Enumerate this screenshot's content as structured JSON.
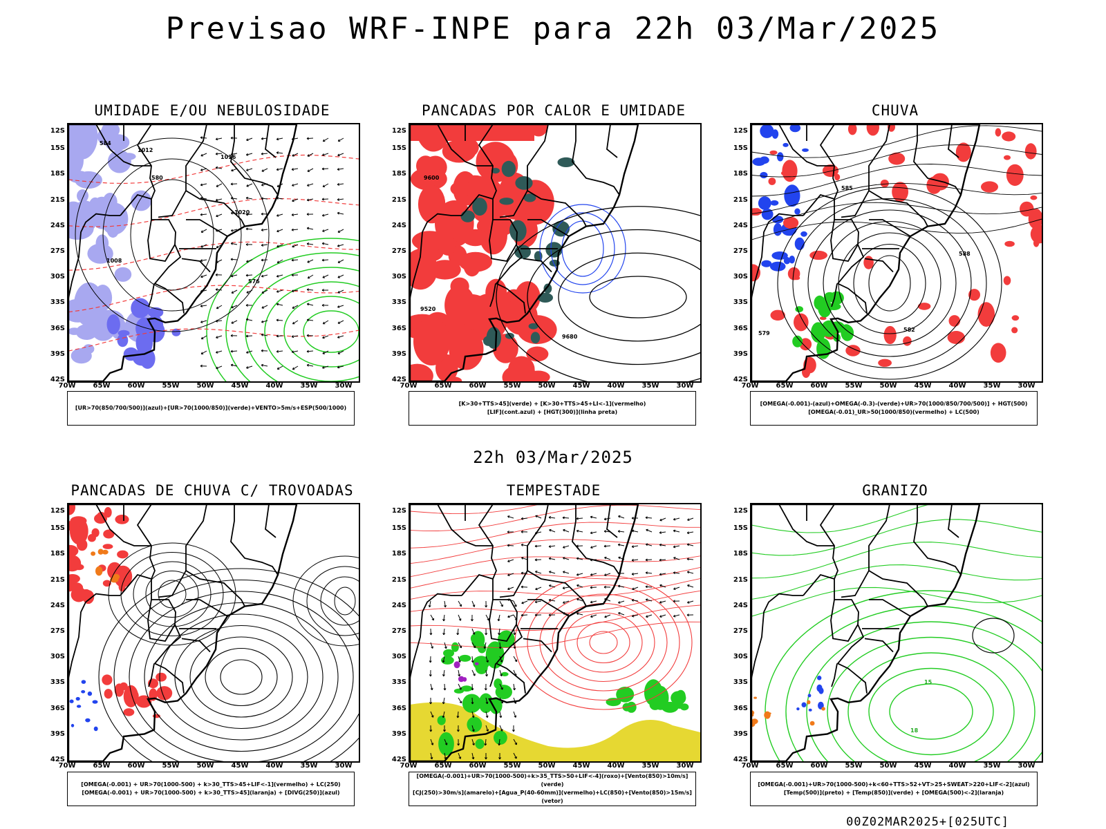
{
  "title": "Previsao WRF-INPE  para 22h 03/Mar/2025",
  "subtitle": "22h 03/Mar/2025",
  "footer": "00Z02MAR2025+[025UTC]",
  "lat_ticks": [
    "12S",
    "15S",
    "18S",
    "21S",
    "24S",
    "27S",
    "30S",
    "33S",
    "36S",
    "39S",
    "42S"
  ],
  "lon_ticks": [
    "70W",
    "65W",
    "60W",
    "55W",
    "50W",
    "45W",
    "40W",
    "35W",
    "30W"
  ],
  "panels": [
    {
      "title": "UMIDADE E/OU NEBULOSIDADE",
      "legend": [
        "[UR>70(850/700/500)](azul)+[UR>70(1000/850)](verde)+VENTO>5m/s+ESP(500/1000)"
      ],
      "contour_labels": [
        "1012",
        "1016",
        "1020",
        "576",
        "580",
        "584",
        "1008"
      ]
    },
    {
      "title": "PANCADAS POR CALOR E UMIDADE",
      "legend": [
        "[K>30+TTS>45](verde) + [K>30+TTS>45+LI<-1](vermelho)",
        "[LIF](cont.azul) + [HGT(300)](linha preta)"
      ],
      "contour_labels": [
        "9600",
        "9680",
        "9520"
      ]
    },
    {
      "title": "CHUVA",
      "legend": [
        "[OMEGA(-0.001)-(azul)+OMEGA(-0.3)-(verde)+UR>70(1000/850/700/500)] + HGT(500)",
        "[OMEGA(-0.01)_UR>50(1000/850)(vermelho) + LC(500)"
      ],
      "contour_labels": [
        "585",
        "588",
        "579",
        "582"
      ]
    },
    {
      "title": "PANCADAS DE CHUVA C/ TROVOADAS",
      "legend": [
        "[OMEGA(-0.001) + UR>70(1000-500) + k>30_TTS>45+LIF<-1](vermelho) + LC(250)",
        "[OMEGA(-0.001) + UR>70(1000-500) + k>30_TTS>45](laranja) + [DIVG(250)](azul)"
      ],
      "contour_labels": []
    },
    {
      "title": "TEMPESTADE",
      "legend": [
        "[OMEGA(-0.001)+UR>70(1000-500)+k>35_TTS>50+LIF<-4](roxo)+[Vento(850)>10m/s](verde)",
        "[CJ(250)>30m/s](amarelo)+[Agua_P(40-60mm)](vermelho)+LC(850)+[Vento(850)>15m/s](vetor)"
      ],
      "contour_labels": []
    },
    {
      "title": "GRANIZO",
      "legend": [
        "[OMEGA(-0.001)+UR>70(1000-500)+k<60+TTS>52+VT>25+SWEAT>220+LIF<-2](azul)",
        "[Temp(500)](preto) + [Temp(850)](verde) + [OMEGA(500)<-2](laranja)"
      ],
      "contour_labels": [
        "15",
        "18"
      ]
    }
  ],
  "colors": {
    "red": "#f23c3c",
    "green": "#22cc22",
    "blue": "#2244ee",
    "lightblue": "#a8a8f0",
    "darkteal": "#2f5a58",
    "orange": "#f07a1a",
    "yellow": "#e6d832",
    "purple": "#a020c0"
  }
}
